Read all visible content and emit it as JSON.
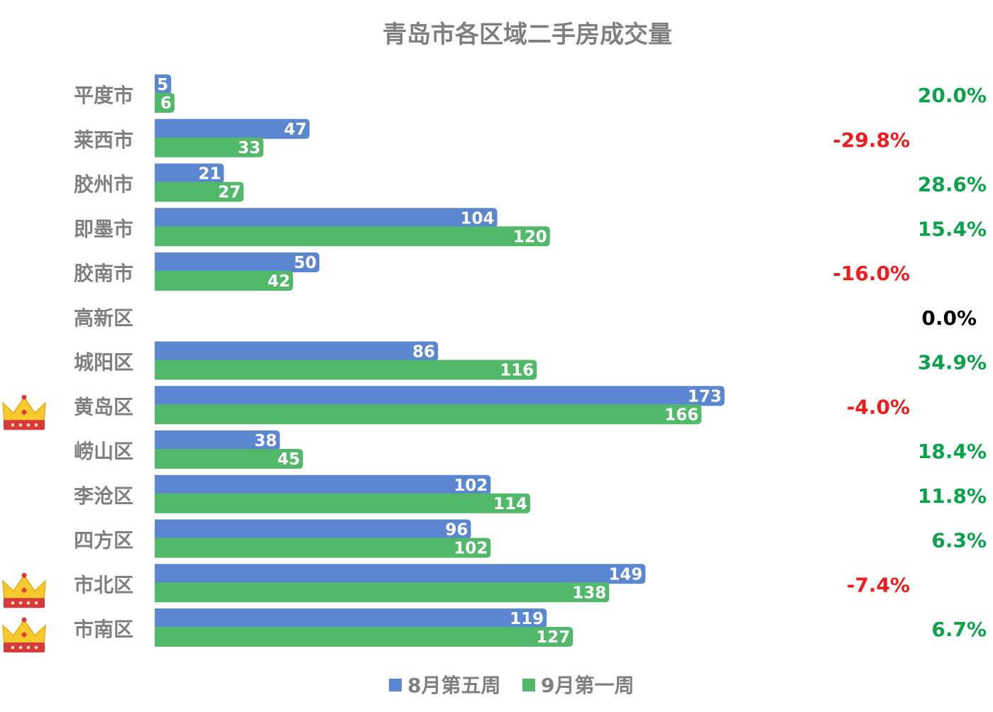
{
  "chart_data": {
    "type": "bar",
    "orientation": "horizontal",
    "title": "青岛市各区域二手房成交量",
    "categories": [
      "平度市",
      "莱西市",
      "胶州市",
      "即墨市",
      "胶南市",
      "高新区",
      "城阳区",
      "黄岛区",
      "崂山区",
      "李沧区",
      "四方区",
      "市北区",
      "市南区"
    ],
    "series": [
      {
        "name": "8月第五周",
        "color": "#5b87d0",
        "values": [
          5,
          47,
          21,
          104,
          50,
          0,
          86,
          173,
          38,
          102,
          96,
          149,
          119
        ]
      },
      {
        "name": "9月第一周",
        "color": "#52b96a",
        "values": [
          6,
          33,
          27,
          120,
          42,
          0,
          116,
          166,
          45,
          114,
          102,
          138,
          127
        ]
      }
    ],
    "changes": [
      "20.0%",
      "-29.8%",
      "28.6%",
      "15.4%",
      "-16.0%",
      "0.0%",
      "34.9%",
      "-4.0%",
      "18.4%",
      "11.8%",
      "6.3%",
      "-7.4%",
      "6.7%"
    ],
    "crowned": [
      "黄岛区",
      "市北区",
      "市南区"
    ],
    "colors": {
      "positive": "#0aa24a",
      "negative": "#ee1c1c",
      "zero": "#000000"
    },
    "xlim": [
      0,
      180
    ],
    "grid": false,
    "legend_position": "bottom"
  }
}
